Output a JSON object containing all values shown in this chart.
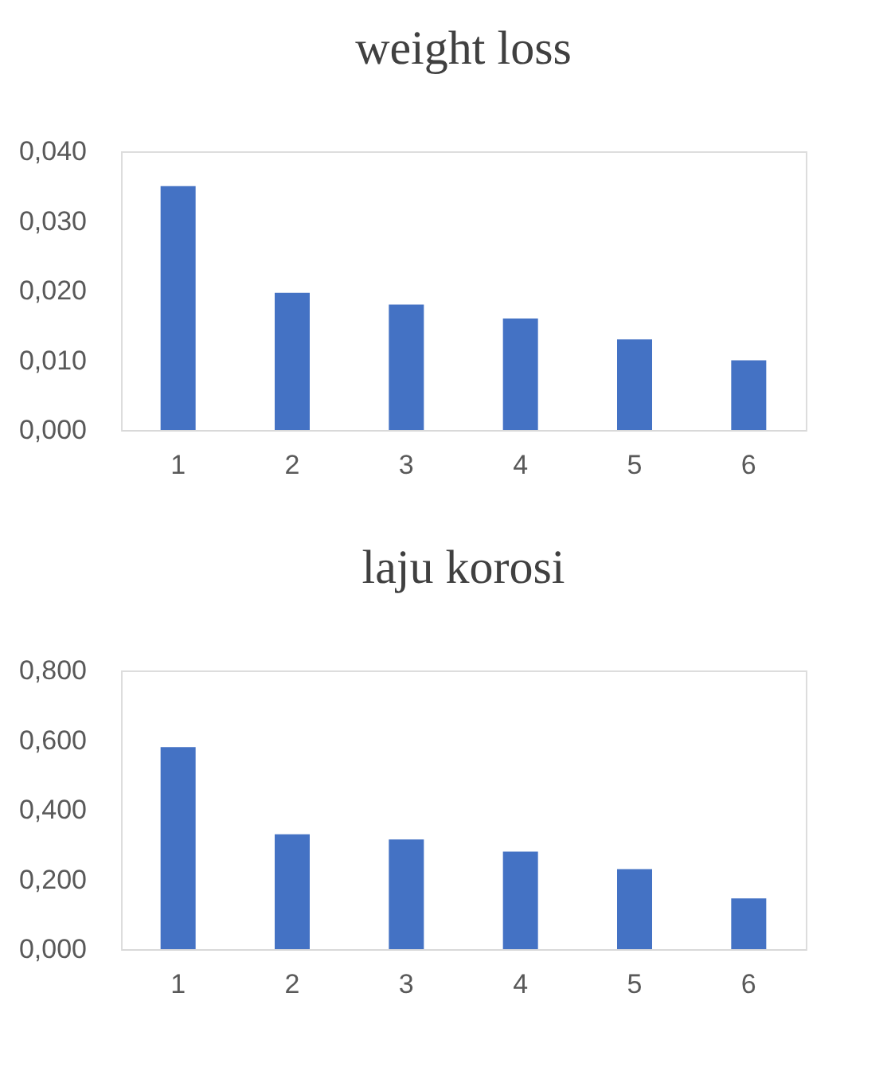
{
  "chart_data": [
    {
      "type": "bar",
      "title": "weight loss",
      "categories": [
        "1",
        "2",
        "3",
        "4",
        "5",
        "6"
      ],
      "values": [
        0.035,
        0.0197,
        0.018,
        0.016,
        0.013,
        0.01
      ],
      "color": "#4472c4",
      "ylim": [
        0,
        0.04
      ],
      "yticks": [
        {
          "value": 0,
          "label": "0,000"
        },
        {
          "value": 0.01,
          "label": "0,010"
        },
        {
          "value": 0.02,
          "label": "0,020"
        },
        {
          "value": 0.03,
          "label": "0,030"
        },
        {
          "value": 0.04,
          "label": "0,040"
        }
      ],
      "grid": false
    },
    {
      "type": "bar",
      "title": "laju korosi",
      "categories": [
        "1",
        "2",
        "3",
        "4",
        "5",
        "6"
      ],
      "values": [
        0.58,
        0.33,
        0.315,
        0.28,
        0.23,
        0.146
      ],
      "color": "#4472c4",
      "ylim": [
        0,
        0.8
      ],
      "yticks": [
        {
          "value": 0,
          "label": "0,000"
        },
        {
          "value": 0.2,
          "label": "0,200"
        },
        {
          "value": 0.4,
          "label": "0,400"
        },
        {
          "value": 0.6,
          "label": "0,600"
        },
        {
          "value": 0.8,
          "label": "0,800"
        }
      ],
      "grid": false
    }
  ]
}
